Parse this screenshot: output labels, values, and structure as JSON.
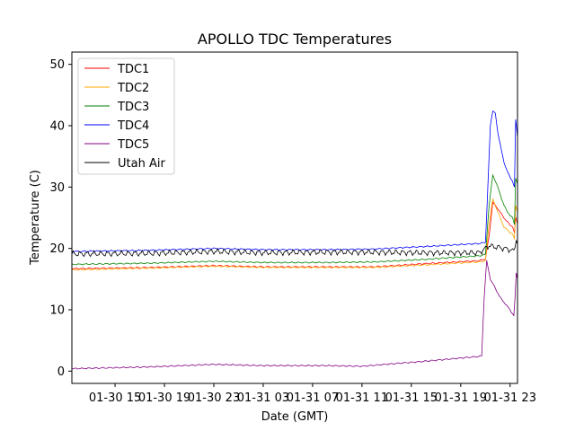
{
  "chart_data": {
    "type": "line",
    "title": "APOLLO TDC Temperatures",
    "xlabel": "Date (GMT)",
    "ylabel": "Temperature (C)",
    "x_unit": "hours since 01-30 00:00 GMT",
    "xlim": [
      11.5,
      47.6
    ],
    "ylim": [
      -2,
      52
    ],
    "xticks": [
      {
        "x": 15,
        "label": "01-30 15"
      },
      {
        "x": 19,
        "label": "01-30 19"
      },
      {
        "x": 23,
        "label": "01-30 23"
      },
      {
        "x": 27,
        "label": "01-31 03"
      },
      {
        "x": 31,
        "label": "01-31 07"
      },
      {
        "x": 35,
        "label": "01-31 11"
      },
      {
        "x": 39,
        "label": "01-31 15"
      },
      {
        "x": 43,
        "label": "01-31 19"
      },
      {
        "x": 47,
        "label": "01-31 23"
      }
    ],
    "yticks": [
      0,
      10,
      20,
      30,
      40,
      50
    ],
    "legend_position": "top-left",
    "series": [
      {
        "name": "TDC1",
        "color": "#ff0000",
        "x": [
          11.5,
          18,
          23,
          27,
          32,
          36,
          40,
          44.5,
          45.0,
          45.3,
          45.6,
          46.0,
          46.5,
          47.0,
          47.2,
          47.35,
          47.45,
          47.6
        ],
        "y": [
          16.7,
          16.9,
          17.2,
          17.0,
          17.0,
          17.0,
          17.5,
          18.0,
          18.3,
          22.0,
          27.5,
          26.5,
          25.0,
          23.8,
          23.6,
          22.5,
          25.0,
          24.0
        ]
      },
      {
        "name": "TDC2",
        "color": "#ffa500",
        "x": [
          11.5,
          18,
          23,
          27,
          32,
          36,
          40,
          44.5,
          45.0,
          45.3,
          45.6,
          46.0,
          46.5,
          47.0,
          47.2,
          47.35,
          47.45,
          47.6
        ],
        "y": [
          16.5,
          16.8,
          17.1,
          16.9,
          16.9,
          16.9,
          17.3,
          17.8,
          18.0,
          24.0,
          28.0,
          26.0,
          23.5,
          22.6,
          22.3,
          21.5,
          27.0,
          26.0
        ]
      },
      {
        "name": "TDC3",
        "color": "#008000",
        "x": [
          11.5,
          18,
          23,
          27,
          32,
          36,
          40,
          44.5,
          45.0,
          45.3,
          45.6,
          46.0,
          46.5,
          47.0,
          47.2,
          47.35,
          47.45,
          47.6
        ],
        "y": [
          17.4,
          17.6,
          17.9,
          17.7,
          17.7,
          17.8,
          18.2,
          18.8,
          19.0,
          27.0,
          32.0,
          30.0,
          27.0,
          25.3,
          25.0,
          24.0,
          31.5,
          30.5
        ]
      },
      {
        "name": "TDC4",
        "color": "#0000ff",
        "x": [
          11.5,
          18,
          23,
          27,
          32,
          36,
          40,
          44.5,
          45.0,
          45.2,
          45.4,
          45.6,
          45.8,
          46.0,
          46.5,
          47.0,
          47.2,
          47.35,
          47.45,
          47.6
        ],
        "y": [
          19.5,
          19.7,
          20.0,
          19.8,
          19.8,
          19.9,
          20.3,
          20.8,
          21.0,
          30.0,
          40.0,
          42.5,
          42.0,
          39.0,
          34.0,
          31.5,
          31.0,
          30.0,
          41.0,
          38.0
        ]
      },
      {
        "name": "TDC5",
        "color": "#800080",
        "x": [
          11.5,
          18,
          23,
          27,
          32,
          35,
          40,
          44.5,
          44.7,
          44.9,
          45.1,
          45.4,
          45.8,
          46.2,
          46.6,
          47.0,
          47.3,
          47.4,
          47.5,
          47.6
        ],
        "y": [
          0.4,
          0.7,
          1.1,
          0.9,
          0.9,
          0.8,
          1.6,
          2.4,
          2.5,
          12.0,
          18.0,
          15.0,
          13.5,
          12.0,
          11.0,
          10.0,
          9.0,
          12.0,
          16.0,
          15.0
        ]
      },
      {
        "name": "Utah Air",
        "color": "#000000",
        "x": [
          11.5,
          18,
          23,
          27,
          32,
          36,
          40,
          44.5,
          45.0,
          45.3,
          45.6,
          46.0,
          46.5,
          47.0,
          47.3,
          47.5,
          47.6
        ],
        "y": [
          19.1,
          19.2,
          19.5,
          19.3,
          19.4,
          19.4,
          19.3,
          19.3,
          20.0,
          20.5,
          20.3,
          20.2,
          20.0,
          19.8,
          19.5,
          21.5,
          21.0
        ]
      }
    ]
  }
}
